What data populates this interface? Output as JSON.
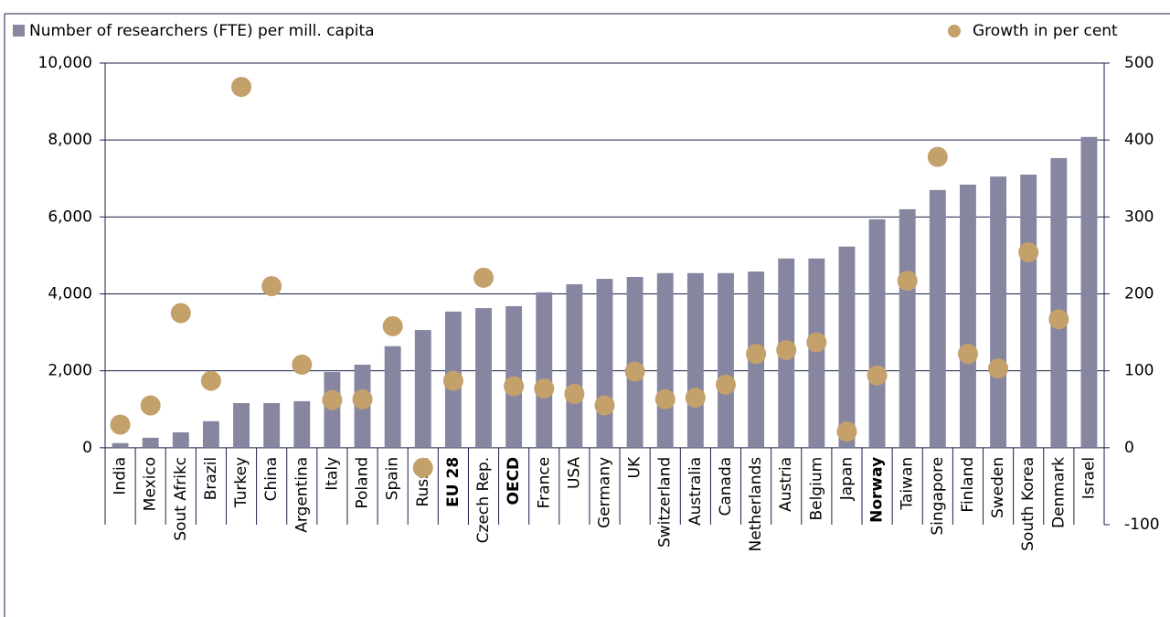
{
  "chart_data": {
    "type": "bar",
    "categories": [
      "India",
      "Mexico",
      "Sout Afrikc",
      "Brazil",
      "Turkey",
      "China",
      "Argentina",
      "Italy",
      "Poland",
      "Spain",
      "Russia",
      "EU 28",
      "Czech Rep.",
      "OECD",
      "France",
      "USA",
      "Germany",
      "UK",
      "Switzerland",
      "Australia",
      "Canada",
      "Netherlands",
      "Austria",
      "Belgium",
      "Japan",
      "Norway",
      "Taiwan",
      "Singapore",
      "Finland",
      "Sweden",
      "South Korea",
      "Denmark",
      "Israel"
    ],
    "bold_categories": [
      11,
      13,
      25
    ],
    "series": [
      {
        "name": "Number of researchers (FTE) per mill. capita",
        "type": "bar",
        "color": "#8686a0",
        "values": [
          120,
          260,
          400,
          690,
          1160,
          1160,
          1210,
          1970,
          2160,
          2640,
          3060,
          3540,
          3630,
          3680,
          4040,
          4250,
          4390,
          4440,
          4540,
          4540,
          4540,
          4580,
          4920,
          4920,
          5230,
          5940,
          6200,
          6700,
          6840,
          7050,
          7100,
          7530,
          8080
        ]
      },
      {
        "name": "Growth in per cent",
        "type": "scatter",
        "axis": "y2",
        "color": "#c4a06b",
        "values": [
          30,
          55,
          175,
          87,
          469,
          210,
          108,
          62,
          63,
          158,
          -26,
          87,
          221,
          80,
          77,
          70,
          55,
          99,
          63,
          65,
          82,
          122,
          127,
          137,
          21,
          94,
          217,
          378,
          122,
          103,
          254,
          167,
          null
        ]
      }
    ],
    "ylim": [
      -2000,
      10000
    ],
    "yticks": [
      0,
      {
        "value": 2000,
        "label": "2,000"
      },
      {
        "value": 4000,
        "label": "4,000"
      },
      {
        "value": 6000,
        "label": "6,000"
      },
      {
        "value": 8000,
        "label": "8,000"
      },
      {
        "value": 10000,
        "label": "10,000"
      }
    ],
    "y2lim": [
      -100,
      500
    ],
    "y2ticks": [
      -100,
      0,
      100,
      200,
      300,
      400,
      500
    ],
    "grid": true
  }
}
